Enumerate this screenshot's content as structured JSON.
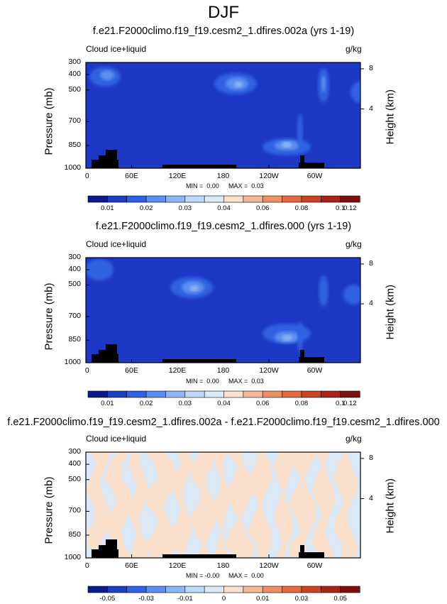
{
  "figure_title": "DJF",
  "chart_data": [
    {
      "type": "heatmap",
      "title": "f.e21.F2000climo.f19_f19.cesm2_1.dfires.002a (yrs 1-19)",
      "left_label": "Cloud ice+liquid",
      "units": "g/kg",
      "ylabel": "Pressure (mb)",
      "y2label": "Height (km)",
      "y_ticks": [
        "300",
        "400",
        "500",
        "700",
        "850",
        "1000"
      ],
      "y2_ticks": [
        "8",
        "4"
      ],
      "x_ticks": [
        "0",
        "60E",
        "120E",
        "180",
        "120W",
        "60W"
      ],
      "min_label": "MIN =  0.00",
      "max_label": "MAX =  0.03",
      "colorbar_labels": [
        "0.01",
        "0.02",
        "0.03",
        "0.04",
        "0.06",
        "0.08",
        "0.1",
        "0.12"
      ],
      "colorbar_colors": [
        "#0a1a8a",
        "#1b3fbf",
        "#2f62e0",
        "#5b8ef0",
        "#8cb6f5",
        "#bcd8fa",
        "#dceaf7",
        "#fbe0cc",
        "#f5b896",
        "#ee9066",
        "#e36a40",
        "#c94425",
        "#a8241a",
        "#7d0e0f"
      ],
      "background_color": "#1c38c4",
      "features": [
        {
          "type": "blob",
          "x": 148,
          "y": 108,
          "rx": 22,
          "ry": 14,
          "level": 1
        },
        {
          "type": "blob",
          "x": 151,
          "y": 106,
          "rx": 10,
          "ry": 7,
          "level": 2
        },
        {
          "type": "blob",
          "x": 332,
          "y": 118,
          "rx": 30,
          "ry": 15,
          "level": 1
        },
        {
          "type": "blob",
          "x": 334,
          "y": 118,
          "rx": 16,
          "ry": 9,
          "level": 2
        },
        {
          "type": "blob",
          "x": 336,
          "y": 119,
          "rx": 6,
          "ry": 4,
          "level": 3
        },
        {
          "type": "blob",
          "x": 456,
          "y": 120,
          "rx": 8,
          "ry": 24,
          "level": 1
        },
        {
          "type": "blob",
          "x": 456,
          "y": 118,
          "rx": 3,
          "ry": 12,
          "level": 2
        },
        {
          "type": "blob",
          "x": 404,
          "y": 207,
          "rx": 34,
          "ry": 12,
          "level": 1
        },
        {
          "type": "blob",
          "x": 405,
          "y": 205,
          "rx": 18,
          "ry": 7,
          "level": 2
        },
        {
          "type": "blob",
          "x": 404,
          "y": 204,
          "rx": 7,
          "ry": 4,
          "level": 3
        },
        {
          "type": "blob",
          "x": 423,
          "y": 185,
          "rx": 4,
          "ry": 25,
          "level": 1
        },
        {
          "type": "blob",
          "x": 508,
          "y": 130,
          "rx": 14,
          "ry": 15,
          "level": 1
        }
      ],
      "terrain": [
        [
          0,
          50
        ],
        [
          8,
          50
        ],
        [
          9,
          45
        ],
        [
          14,
          45
        ],
        [
          15,
          40
        ],
        [
          18,
          40
        ],
        [
          19,
          35
        ],
        [
          25,
          35
        ],
        [
          26,
          30
        ],
        [
          40,
          30
        ],
        [
          40,
          50
        ]
      ]
    },
    {
      "type": "heatmap",
      "title": "f.e21.F2000climo.f19_f19.cesm2_1.dfires.000 (yrs 1-19)",
      "left_label": "Cloud ice+liquid",
      "units": "g/kg",
      "ylabel": "Pressure (mb)",
      "y2label": "Height (km)",
      "y_ticks": [
        "300",
        "400",
        "500",
        "700",
        "850",
        "1000"
      ],
      "y2_ticks": [
        "8",
        "4"
      ],
      "x_ticks": [
        "0",
        "60E",
        "120E",
        "180",
        "120W",
        "60W"
      ],
      "min_label": "MIN =  0.00",
      "max_label": "MAX =  0.03",
      "colorbar_labels": [
        "0.01",
        "0.02",
        "0.03",
        "0.04",
        "0.06",
        "0.08",
        "0.1",
        "0.12"
      ],
      "colorbar_colors": [
        "#0a1a8a",
        "#1b3fbf",
        "#2f62e0",
        "#5b8ef0",
        "#8cb6f5",
        "#bcd8fa",
        "#dceaf7",
        "#fbe0cc",
        "#f5b896",
        "#ee9066",
        "#e36a40",
        "#c94425",
        "#a8241a",
        "#7d0e0f"
      ],
      "background_color": "#1c38c4",
      "features": [
        {
          "type": "blob",
          "x": 140,
          "y": 380,
          "rx": 20,
          "ry": 15,
          "level": 1
        },
        {
          "type": "blob",
          "x": 270,
          "y": 405,
          "rx": 30,
          "ry": 15,
          "level": 1
        },
        {
          "type": "blob",
          "x": 272,
          "y": 405,
          "rx": 16,
          "ry": 9,
          "level": 2
        },
        {
          "type": "blob",
          "x": 274,
          "y": 406,
          "rx": 6,
          "ry": 4,
          "level": 3
        },
        {
          "type": "blob",
          "x": 456,
          "y": 410,
          "rx": 7,
          "ry": 22,
          "level": 1
        },
        {
          "type": "blob",
          "x": 404,
          "y": 470,
          "rx": 34,
          "ry": 14,
          "level": 1
        },
        {
          "type": "blob",
          "x": 405,
          "y": 475,
          "rx": 18,
          "ry": 8,
          "level": 2
        },
        {
          "type": "blob",
          "x": 405,
          "y": 476,
          "rx": 7,
          "ry": 4,
          "level": 3
        },
        {
          "type": "blob",
          "x": 423,
          "y": 475,
          "rx": 4,
          "ry": 22,
          "level": 1
        },
        {
          "type": "blob",
          "x": 498,
          "y": 415,
          "rx": 14,
          "ry": 14,
          "level": 1
        }
      ],
      "terrain": [
        [
          0,
          50
        ],
        [
          8,
          50
        ],
        [
          9,
          45
        ],
        [
          14,
          45
        ],
        [
          15,
          40
        ],
        [
          18,
          40
        ],
        [
          19,
          35
        ],
        [
          25,
          35
        ],
        [
          26,
          30
        ],
        [
          40,
          30
        ],
        [
          40,
          50
        ]
      ]
    },
    {
      "type": "heatmap",
      "title": "f.e21.F2000climo.f19_f19.cesm2_1.dfires.002a - f.e21.F2000climo.f19_f19.cesm2_1.dfires.000",
      "left_label": "Cloud ice+liquid",
      "units": "g/kg",
      "ylabel": "Pressure (mb)",
      "y2label": "Height (km)",
      "y_ticks": [
        "300",
        "400",
        "500",
        "700",
        "850",
        "1000"
      ],
      "y2_ticks": [
        "8",
        "4"
      ],
      "x_ticks": [
        "0",
        "60E",
        "120E",
        "180",
        "120W",
        "60W"
      ],
      "min_label": "MIN = -0.00",
      "max_label": "MAX =  0.00",
      "colorbar_labels": [
        "-0.05",
        "-0.03",
        "-0.01",
        "0",
        "0.01",
        "0.03",
        "0.05"
      ],
      "colorbar_colors": [
        "#0a1a8a",
        "#1b3fbf",
        "#2f62e0",
        "#5b8ef0",
        "#8cb6f5",
        "#bcd8fa",
        "#dceaf7",
        "#fbe0cc",
        "#f5b896",
        "#ee9066",
        "#e36a40",
        "#c94425",
        "#a8241a",
        "#7d0e0f"
      ],
      "background_color": "#dceaf7",
      "diff_color": "#fbe0cc"
    }
  ]
}
